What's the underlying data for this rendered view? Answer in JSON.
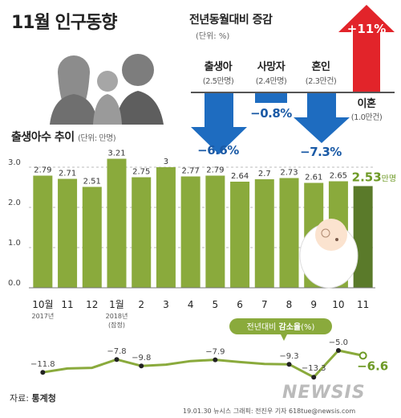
{
  "title": "11월 인구동향",
  "yoy": {
    "title": "전년동월대비 증감",
    "unit": "(단위: %)",
    "items": [
      {
        "label": "출생아",
        "sub": "(2.5만명)",
        "value": -6.6,
        "text": "−6.6%"
      },
      {
        "label": "사망자",
        "sub": "(2.4만명)",
        "value": -0.8,
        "text": "−0.8%"
      },
      {
        "label": "혼인",
        "sub": "(2.3만건)",
        "value": -7.3,
        "text": "−7.3%"
      },
      {
        "label": "이혼",
        "sub": "(1.0만건)",
        "value": 11,
        "text": "+11%"
      }
    ]
  },
  "births": {
    "title": "출생아수 추이",
    "unit": "(단위: 만명)",
    "last_value_text": "2.53",
    "last_value_unit": "만명",
    "rate_legend_prefix": "전년대비 ",
    "rate_legend_bold": "감소율",
    "rate_legend_suffix": "(%)"
  },
  "chart_data": {
    "type": "bar",
    "categories": [
      "10월",
      "11",
      "12",
      "1월",
      "2",
      "3",
      "4",
      "5",
      "6",
      "7",
      "8",
      "9",
      "10",
      "11"
    ],
    "sub_labels": [
      "2017년",
      "",
      "",
      "2018년\n(잠정)",
      "",
      "",
      "",
      "",
      "",
      "",
      "",
      "",
      "",
      ""
    ],
    "value_labels": [
      "2.79",
      "2.71",
      "2.51",
      "3.21",
      "2.75",
      "3",
      "2.77",
      "2.79",
      "2.64",
      "2.7",
      "2.73",
      "2.61",
      "2.65",
      "2.53"
    ],
    "values": [
      2.79,
      2.71,
      2.51,
      3.21,
      2.75,
      3.0,
      2.77,
      2.79,
      2.64,
      2.7,
      2.73,
      2.61,
      2.65,
      2.53
    ],
    "yticks": [
      "0.0",
      "1.0",
      "2.0",
      "3.0"
    ],
    "ylim": [
      0,
      3.3
    ],
    "colors": {
      "bar": "#8aaa3c",
      "highlight": "#5a7a2a",
      "grid": "#bbbbbb"
    },
    "decrease_rate": {
      "points": [
        {
          "x": "10월",
          "value": -11.8,
          "label": "−11.8"
        },
        {
          "x": "1월",
          "value": -7.8,
          "label": "−7.8"
        },
        {
          "x": "2",
          "value": -9.8,
          "label": "−9.8"
        },
        {
          "x": "5",
          "value": -7.9,
          "label": "−7.9"
        },
        {
          "x": "8",
          "value": -9.3,
          "label": "−9.3"
        },
        {
          "x": "9",
          "value": -13.3,
          "label": "−13.3"
        },
        {
          "x": "10",
          "value": -5.0,
          "label": "−5.0"
        },
        {
          "x": "11",
          "value": -6.6,
          "label": "−6.6"
        }
      ],
      "ylim": [
        -14,
        -4
      ],
      "color": "#8aaa3c"
    }
  },
  "source": {
    "label": "자료: ",
    "name": "통계청"
  },
  "credit": "19.01.30  뉴시스 그래픽: 전진우 기자  618tue@newsis.com",
  "watermark": "NEWSIS"
}
